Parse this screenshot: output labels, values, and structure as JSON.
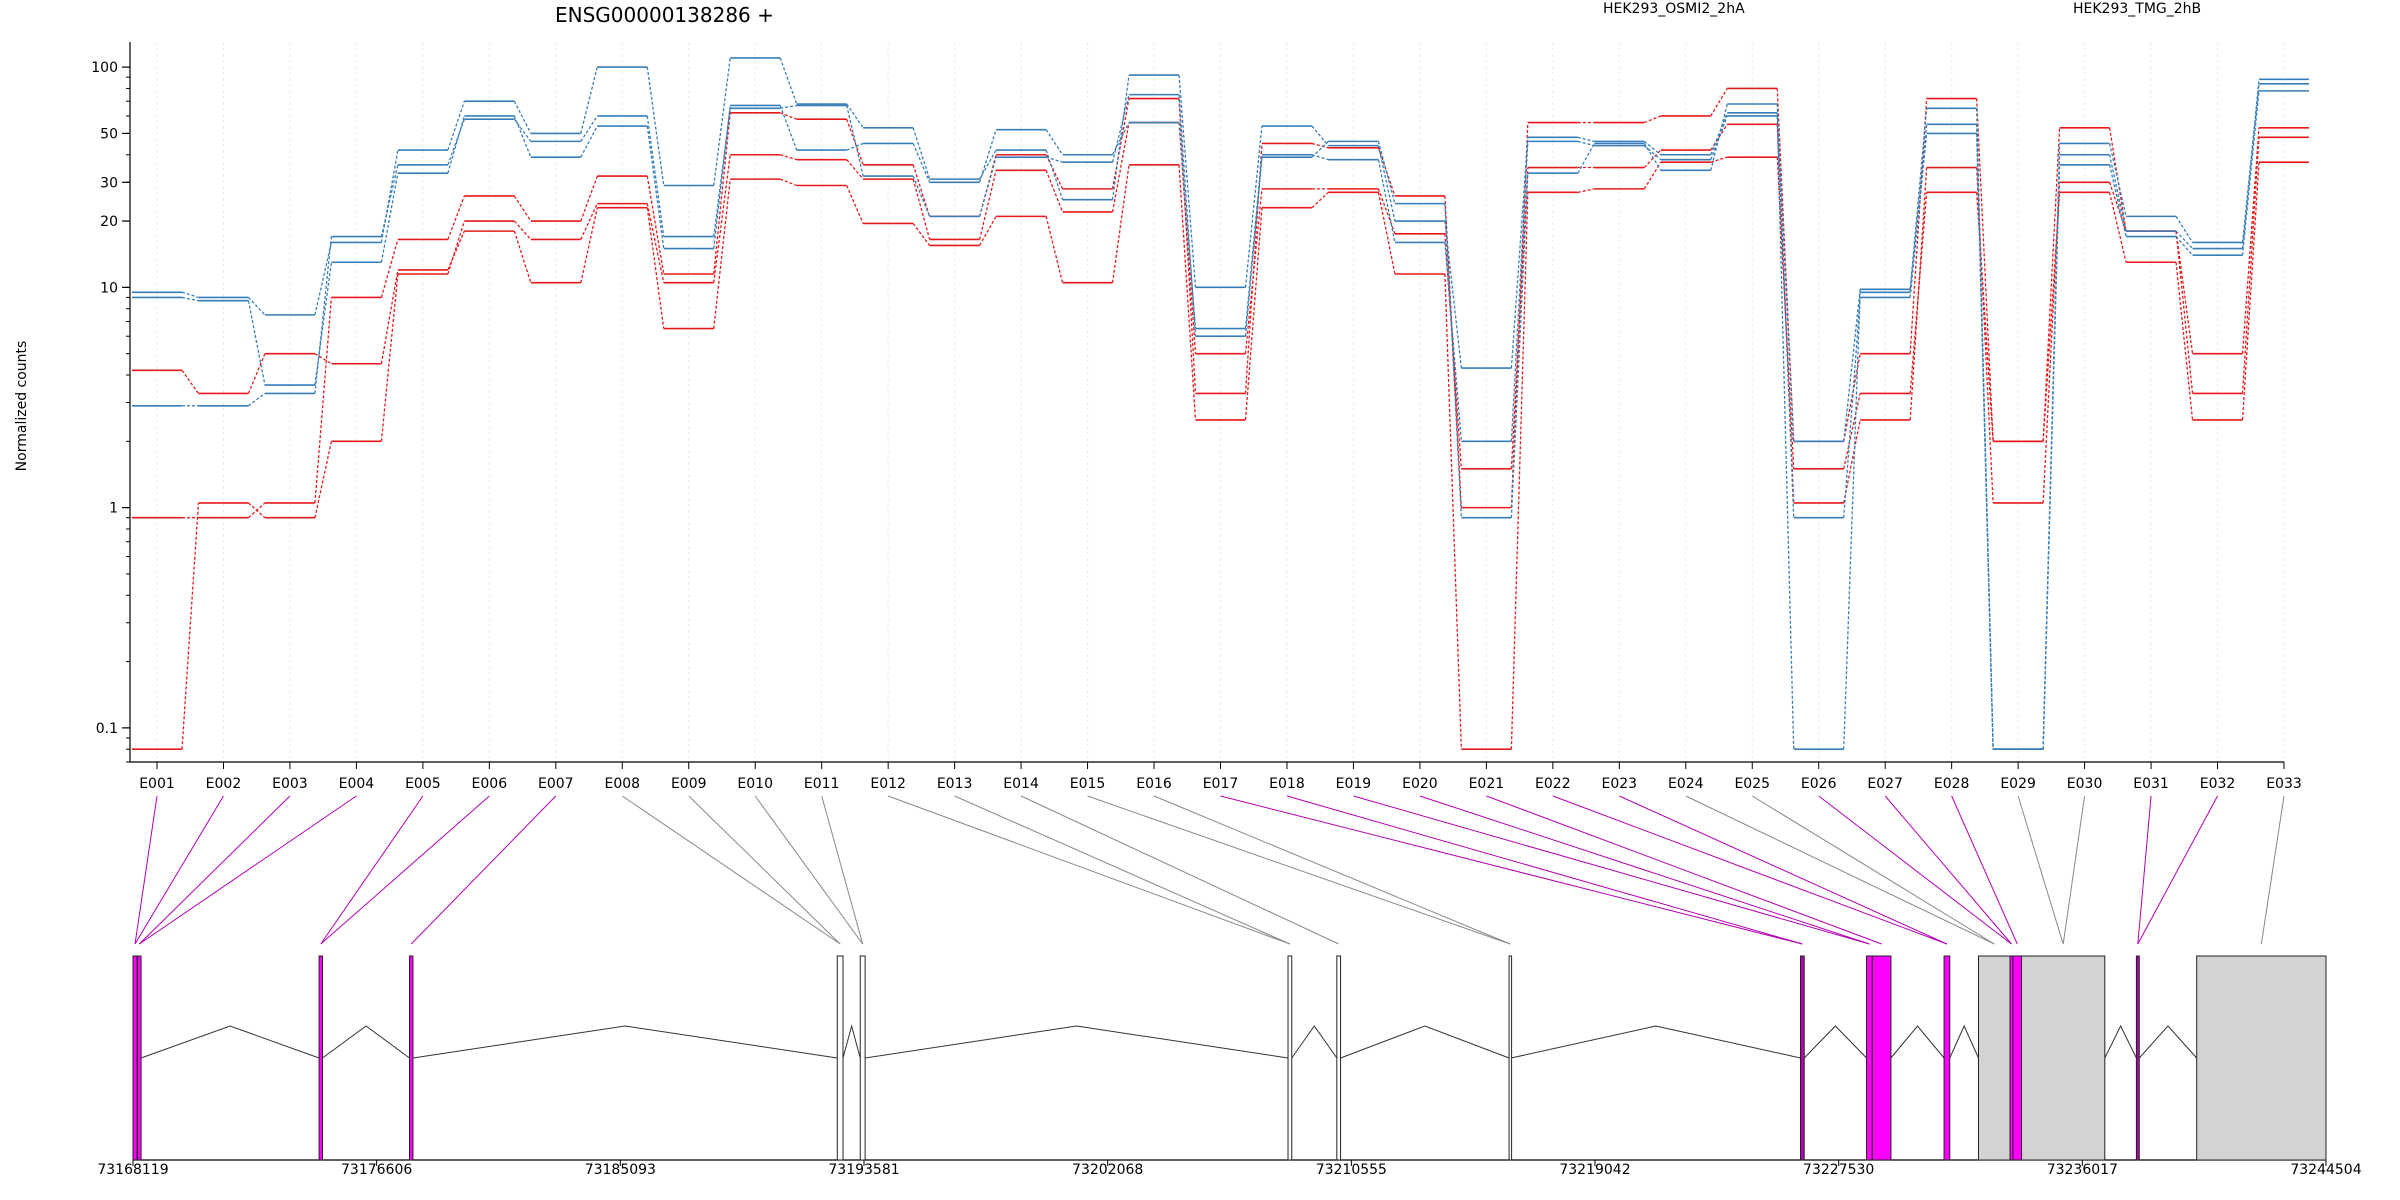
{
  "chart_data": {
    "type": "line",
    "title": "ENSG00000138286 +",
    "ylabel": "Normalized counts",
    "yscale": "log",
    "ylim": [
      0.07,
      130
    ],
    "yticks": [
      0.1,
      1,
      10,
      20,
      30,
      50,
      100
    ],
    "ytick_labels": [
      "0.1",
      "1",
      "10",
      "20",
      "30",
      "50",
      "100"
    ],
    "categories": [
      "E001",
      "E002",
      "E003",
      "E004",
      "E005",
      "E006",
      "E007",
      "E008",
      "E009",
      "E010",
      "E011",
      "E012",
      "E013",
      "E014",
      "E015",
      "E016",
      "E017",
      "E018",
      "E019",
      "E020",
      "E021",
      "E022",
      "E023",
      "E024",
      "E025",
      "E026",
      "E027",
      "E028",
      "E029",
      "E030",
      "E031",
      "E032",
      "E033"
    ],
    "legend": [
      {
        "name": "HEK293_OSMI2_2hA",
        "color": "#e41a1c"
      },
      {
        "name": "HEK293_TMG_2hB",
        "color": "#377eb8"
      }
    ],
    "series": [
      {
        "group": "HEK293_OSMI2_2hA",
        "color": "#e41a1c",
        "values": [
          4.2,
          3.3,
          5.0,
          4.5,
          12,
          18,
          10.5,
          23,
          6.5,
          31,
          29,
          19.5,
          15.5,
          21,
          10.5,
          36,
          2.5,
          23,
          27,
          11.5,
          0.08,
          27,
          28,
          37,
          39,
          1.5,
          3.3,
          27,
          2.0,
          27,
          13,
          2.5,
          37
        ]
      },
      {
        "group": "HEK293_OSMI2_2hA",
        "color": "#e41a1c",
        "values": [
          0.08,
          1.05,
          0.9,
          2.0,
          11.5,
          20,
          16.5,
          24,
          10.5,
          40,
          38,
          31,
          16.5,
          34,
          22,
          56,
          5.0,
          28,
          28,
          17.5,
          1.5,
          35,
          35,
          42,
          55,
          1.05,
          2.5,
          35,
          1.05,
          30,
          18,
          3.3,
          48
        ]
      },
      {
        "group": "HEK293_OSMI2_2hA",
        "color": "#e41a1c",
        "values": [
          0.9,
          0.9,
          1.05,
          9.0,
          16.5,
          26,
          20,
          32,
          11.5,
          62,
          58,
          36,
          21,
          40,
          28,
          72,
          3.3,
          45,
          43,
          26,
          1.0,
          56,
          56,
          60,
          80,
          2.0,
          5.0,
          72,
          2.0,
          53,
          18,
          5.0,
          53
        ]
      },
      {
        "group": "HEK293_TMG_2hB",
        "color": "#377eb8",
        "values": [
          9.5,
          9.0,
          7.5,
          16,
          42,
          70,
          50,
          100,
          29,
          110,
          68,
          53,
          31,
          42,
          25,
          92,
          10,
          54,
          44,
          20,
          4.3,
          48,
          46,
          40,
          62,
          2.0,
          9.8,
          65,
          0.08,
          45,
          21,
          16,
          84
        ]
      },
      {
        "group": "HEK293_TMG_2hB",
        "color": "#377eb8",
        "values": [
          9.0,
          8.7,
          3.6,
          13,
          33,
          60,
          39,
          54,
          15,
          67,
          42,
          45,
          30,
          52,
          40,
          56,
          6.5,
          40,
          38,
          16,
          2.0,
          46,
          44,
          38,
          60,
          0.08,
          9.5,
          55,
          0.08,
          36,
          17,
          14,
          78
        ]
      },
      {
        "group": "HEK293_TMG_2hB",
        "color": "#377eb8",
        "values": [
          2.9,
          2.9,
          3.3,
          17,
          36,
          58,
          46,
          60,
          17,
          65,
          67,
          32,
          21,
          39,
          37,
          75,
          6.0,
          39,
          46,
          24,
          0.9,
          33,
          45,
          34,
          68,
          0.9,
          9.0,
          50,
          0.08,
          40,
          18,
          15,
          88
        ]
      }
    ]
  },
  "gene_model": {
    "coordinate_labels": [
      "73168119",
      "73176606",
      "73185093",
      "73193581",
      "73202068",
      "73210555",
      "73219042",
      "73227530",
      "73236017",
      "73244504"
    ],
    "coordinate_ticks": [
      73168119,
      73176606,
      73185093,
      73193581,
      73202068,
      73210555,
      73219042,
      73227530,
      73236017,
      73244504
    ],
    "exons": [
      {
        "start": 73168119,
        "end": 73168260,
        "fill": "#ff00ff"
      },
      {
        "start": 73168280,
        "end": 73168400,
        "fill": "#ff00ff"
      },
      {
        "start": 73174600,
        "end": 73174720,
        "fill": "#ff00ff"
      },
      {
        "start": 73177750,
        "end": 73177870,
        "fill": "#ff00ff"
      },
      {
        "start": 73192650,
        "end": 73192850,
        "fill": "#ffffff"
      },
      {
        "start": 73193450,
        "end": 73193620,
        "fill": "#ffffff"
      },
      {
        "start": 73208350,
        "end": 73208480,
        "fill": "#ffffff"
      },
      {
        "start": 73210050,
        "end": 73210180,
        "fill": "#ffffff"
      },
      {
        "start": 73216050,
        "end": 73216120,
        "fill": "#ffffff"
      },
      {
        "start": 73226200,
        "end": 73226330,
        "fill": "#b300b3"
      },
      {
        "start": 73228500,
        "end": 73228700,
        "fill": "#ff00ff"
      },
      {
        "start": 73228700,
        "end": 73229350,
        "fill": "#ff00ff"
      },
      {
        "start": 73231200,
        "end": 73231400,
        "fill": "#ff00ff"
      },
      {
        "start": 73232400,
        "end": 73233500,
        "fill": "#d3d3d3"
      },
      {
        "start": 73233500,
        "end": 73233600,
        "fill": "#ff00ff"
      },
      {
        "start": 73233600,
        "end": 73233900,
        "fill": "#ff00ff"
      },
      {
        "start": 73233900,
        "end": 73236800,
        "fill": "#d3d3d3"
      },
      {
        "start": 73237900,
        "end": 73238000,
        "fill": "#b300b3"
      },
      {
        "start": 73240000,
        "end": 73244504,
        "fill": "#d3d3d3"
      }
    ]
  }
}
